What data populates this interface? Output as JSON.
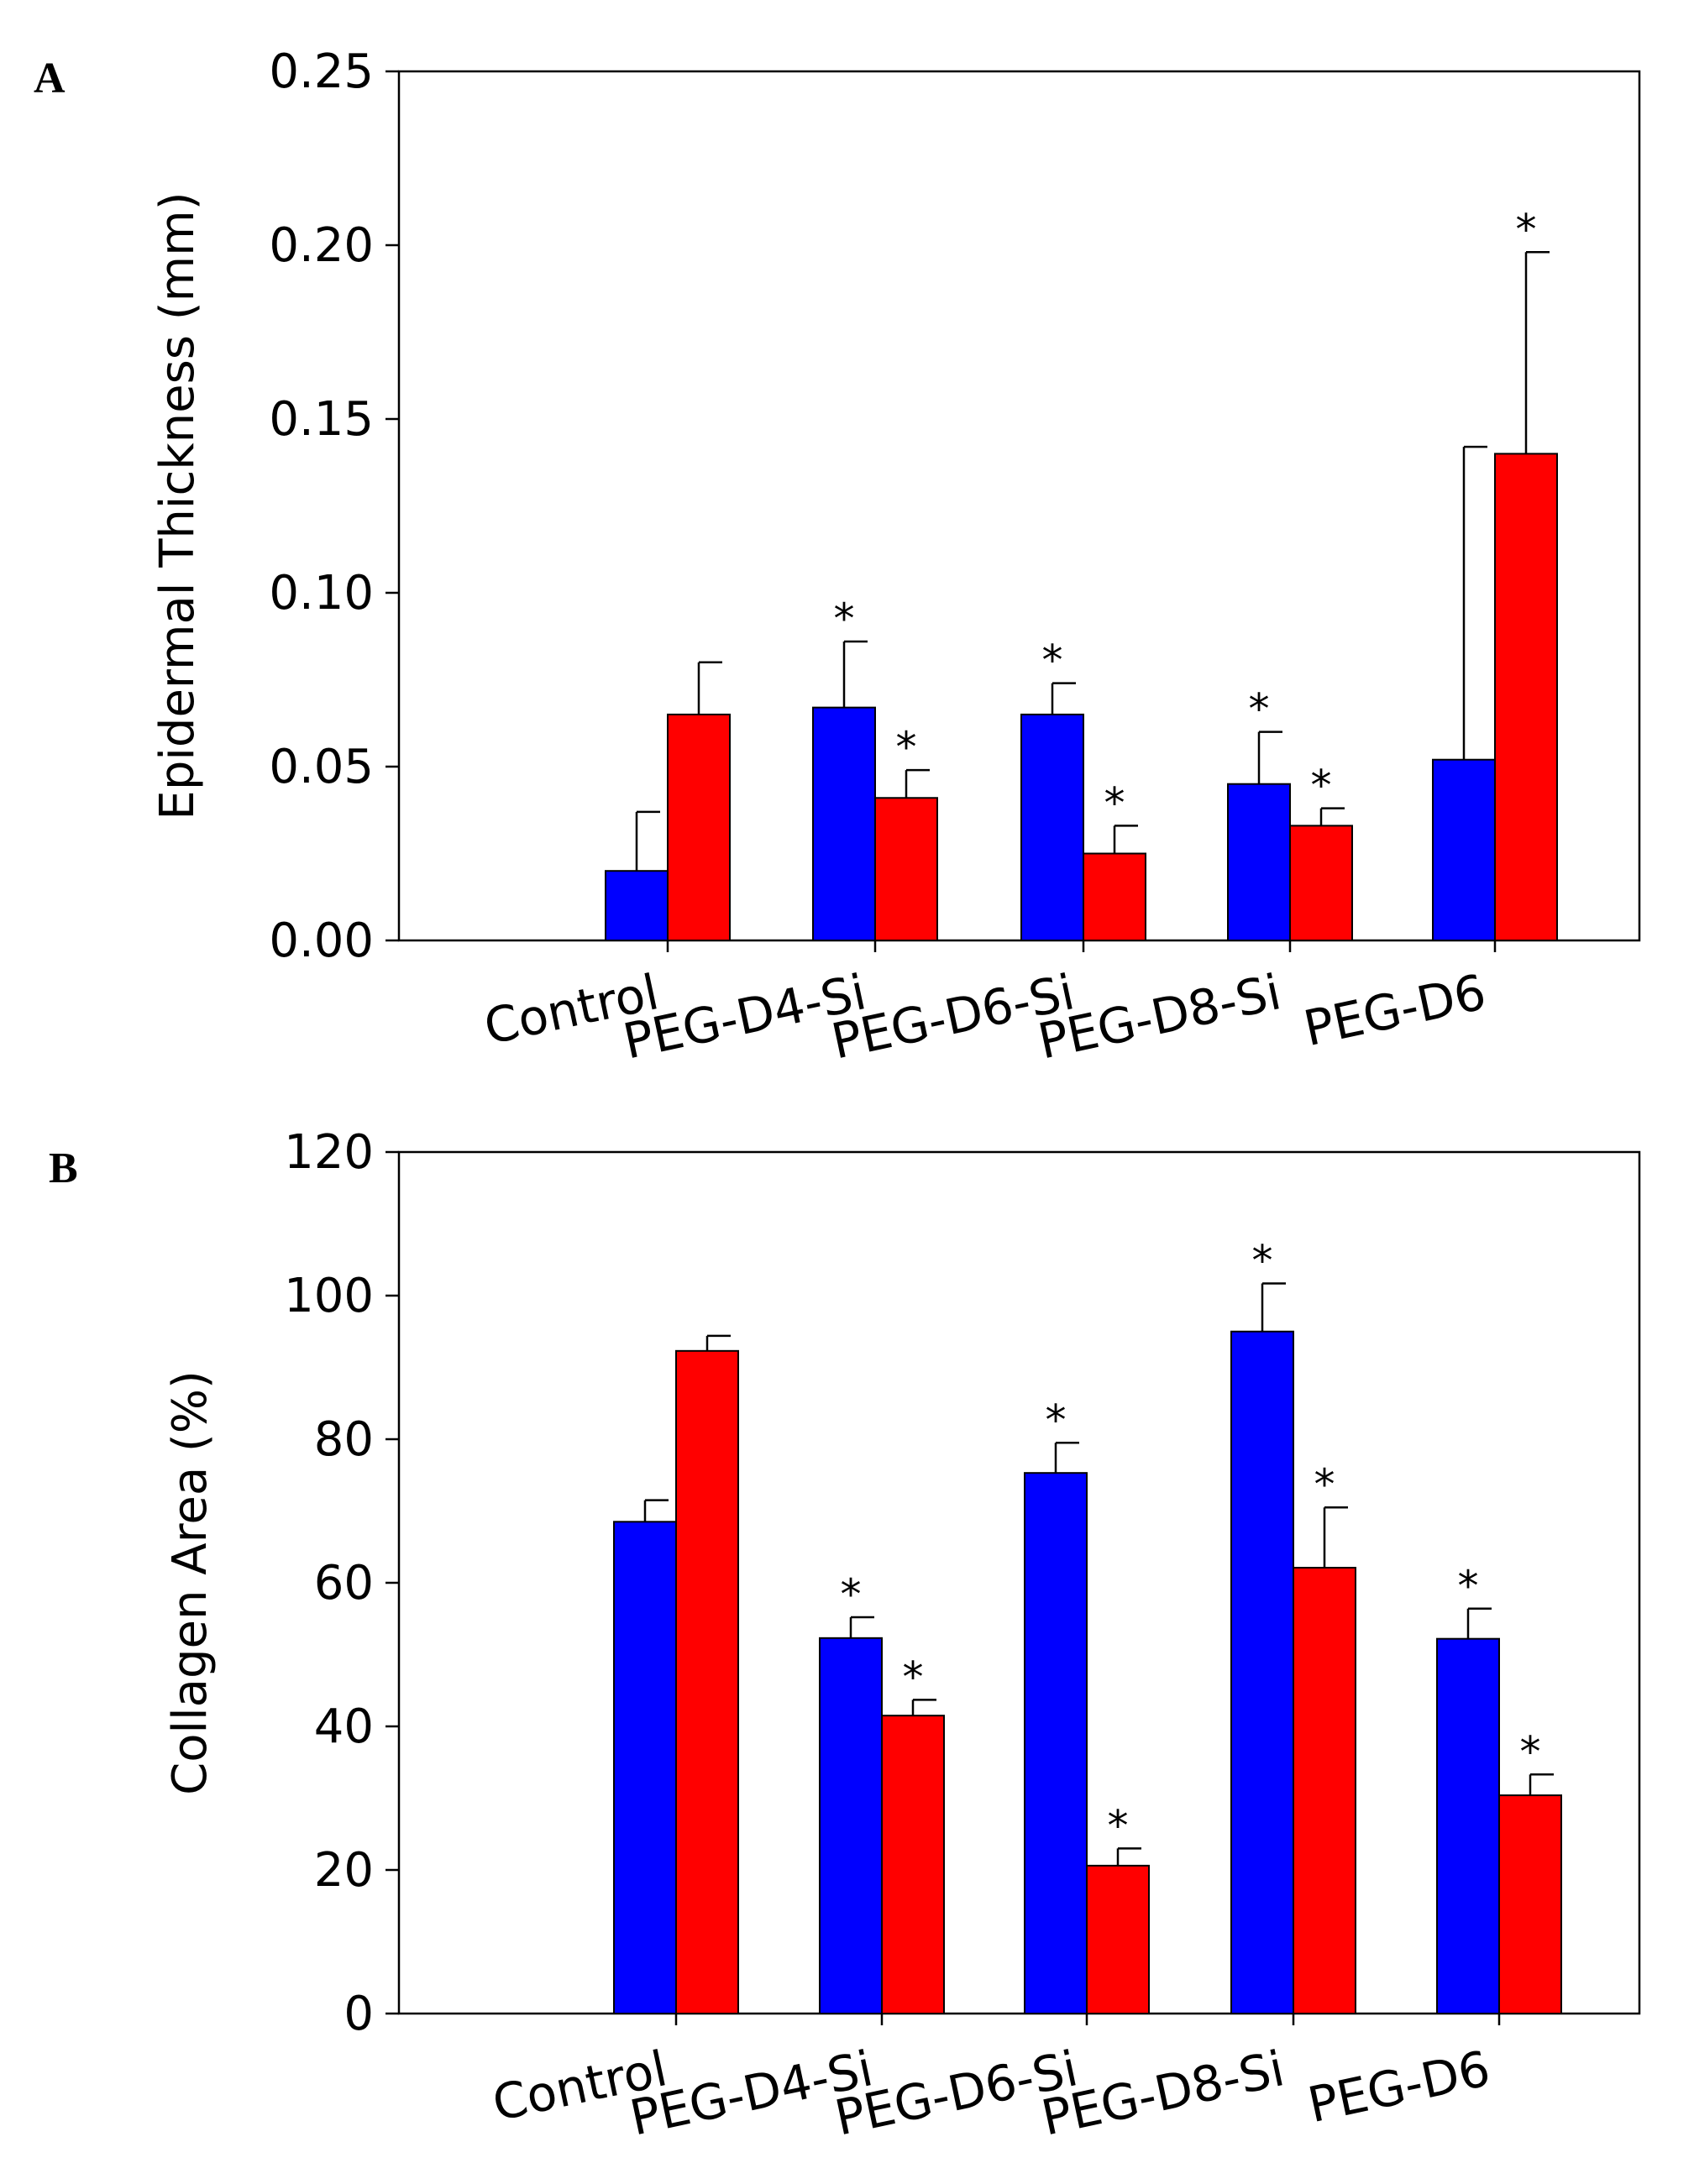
{
  "chart_data": [
    {
      "panel_label": "A",
      "type": "bar",
      "ylabel": "Epidermal Thickness (mm)",
      "ylim": [
        0,
        0.25
      ],
      "yticks": [
        "0.00",
        "0.05",
        "0.10",
        "0.15",
        "0.20",
        "0.25"
      ],
      "categories": [
        "Control",
        "PEG-D4-Si",
        "PEG-D6-Si",
        "PEG-D8-Si",
        "PEG-D6"
      ],
      "series": [
        {
          "name": "blue",
          "color": "#0000ff",
          "values": [
            0.02,
            0.067,
            0.065,
            0.045,
            0.052
          ],
          "errors": [
            0.017,
            0.019,
            0.009,
            0.015,
            0.09
          ],
          "significance": [
            "",
            "*",
            "*",
            "*",
            ""
          ]
        },
        {
          "name": "red",
          "color": "#ff0000",
          "values": [
            0.065,
            0.041,
            0.025,
            0.033,
            0.14
          ],
          "errors": [
            0.015,
            0.008,
            0.008,
            0.005,
            0.058
          ],
          "significance": [
            "",
            "*",
            "*",
            "*",
            "*"
          ]
        }
      ]
    },
    {
      "panel_label": "B",
      "type": "bar",
      "ylabel": "Collagen Area (%)",
      "ylim": [
        0,
        120
      ],
      "yticks": [
        "0",
        "20",
        "40",
        "60",
        "80",
        "100",
        "120"
      ],
      "categories": [
        "Control",
        "PEG-D4-Si",
        "PEG-D6-Si",
        "PEG-D8-Si",
        "PEG-D6"
      ],
      "series": [
        {
          "name": "blue",
          "color": "#0000ff",
          "values": [
            68.5,
            52.3,
            75.3,
            95.0,
            52.2
          ],
          "errors": [
            3.0,
            2.9,
            4.2,
            6.7,
            4.2
          ],
          "significance": [
            "",
            "*",
            "*",
            "*",
            "*"
          ]
        },
        {
          "name": "red",
          "color": "#ff0000",
          "values": [
            92.3,
            41.5,
            20.6,
            62.1,
            30.4
          ],
          "errors": [
            2.1,
            2.2,
            2.4,
            8.4,
            2.9
          ],
          "significance": [
            "",
            "*",
            "*",
            "*",
            "*"
          ]
        }
      ]
    }
  ]
}
